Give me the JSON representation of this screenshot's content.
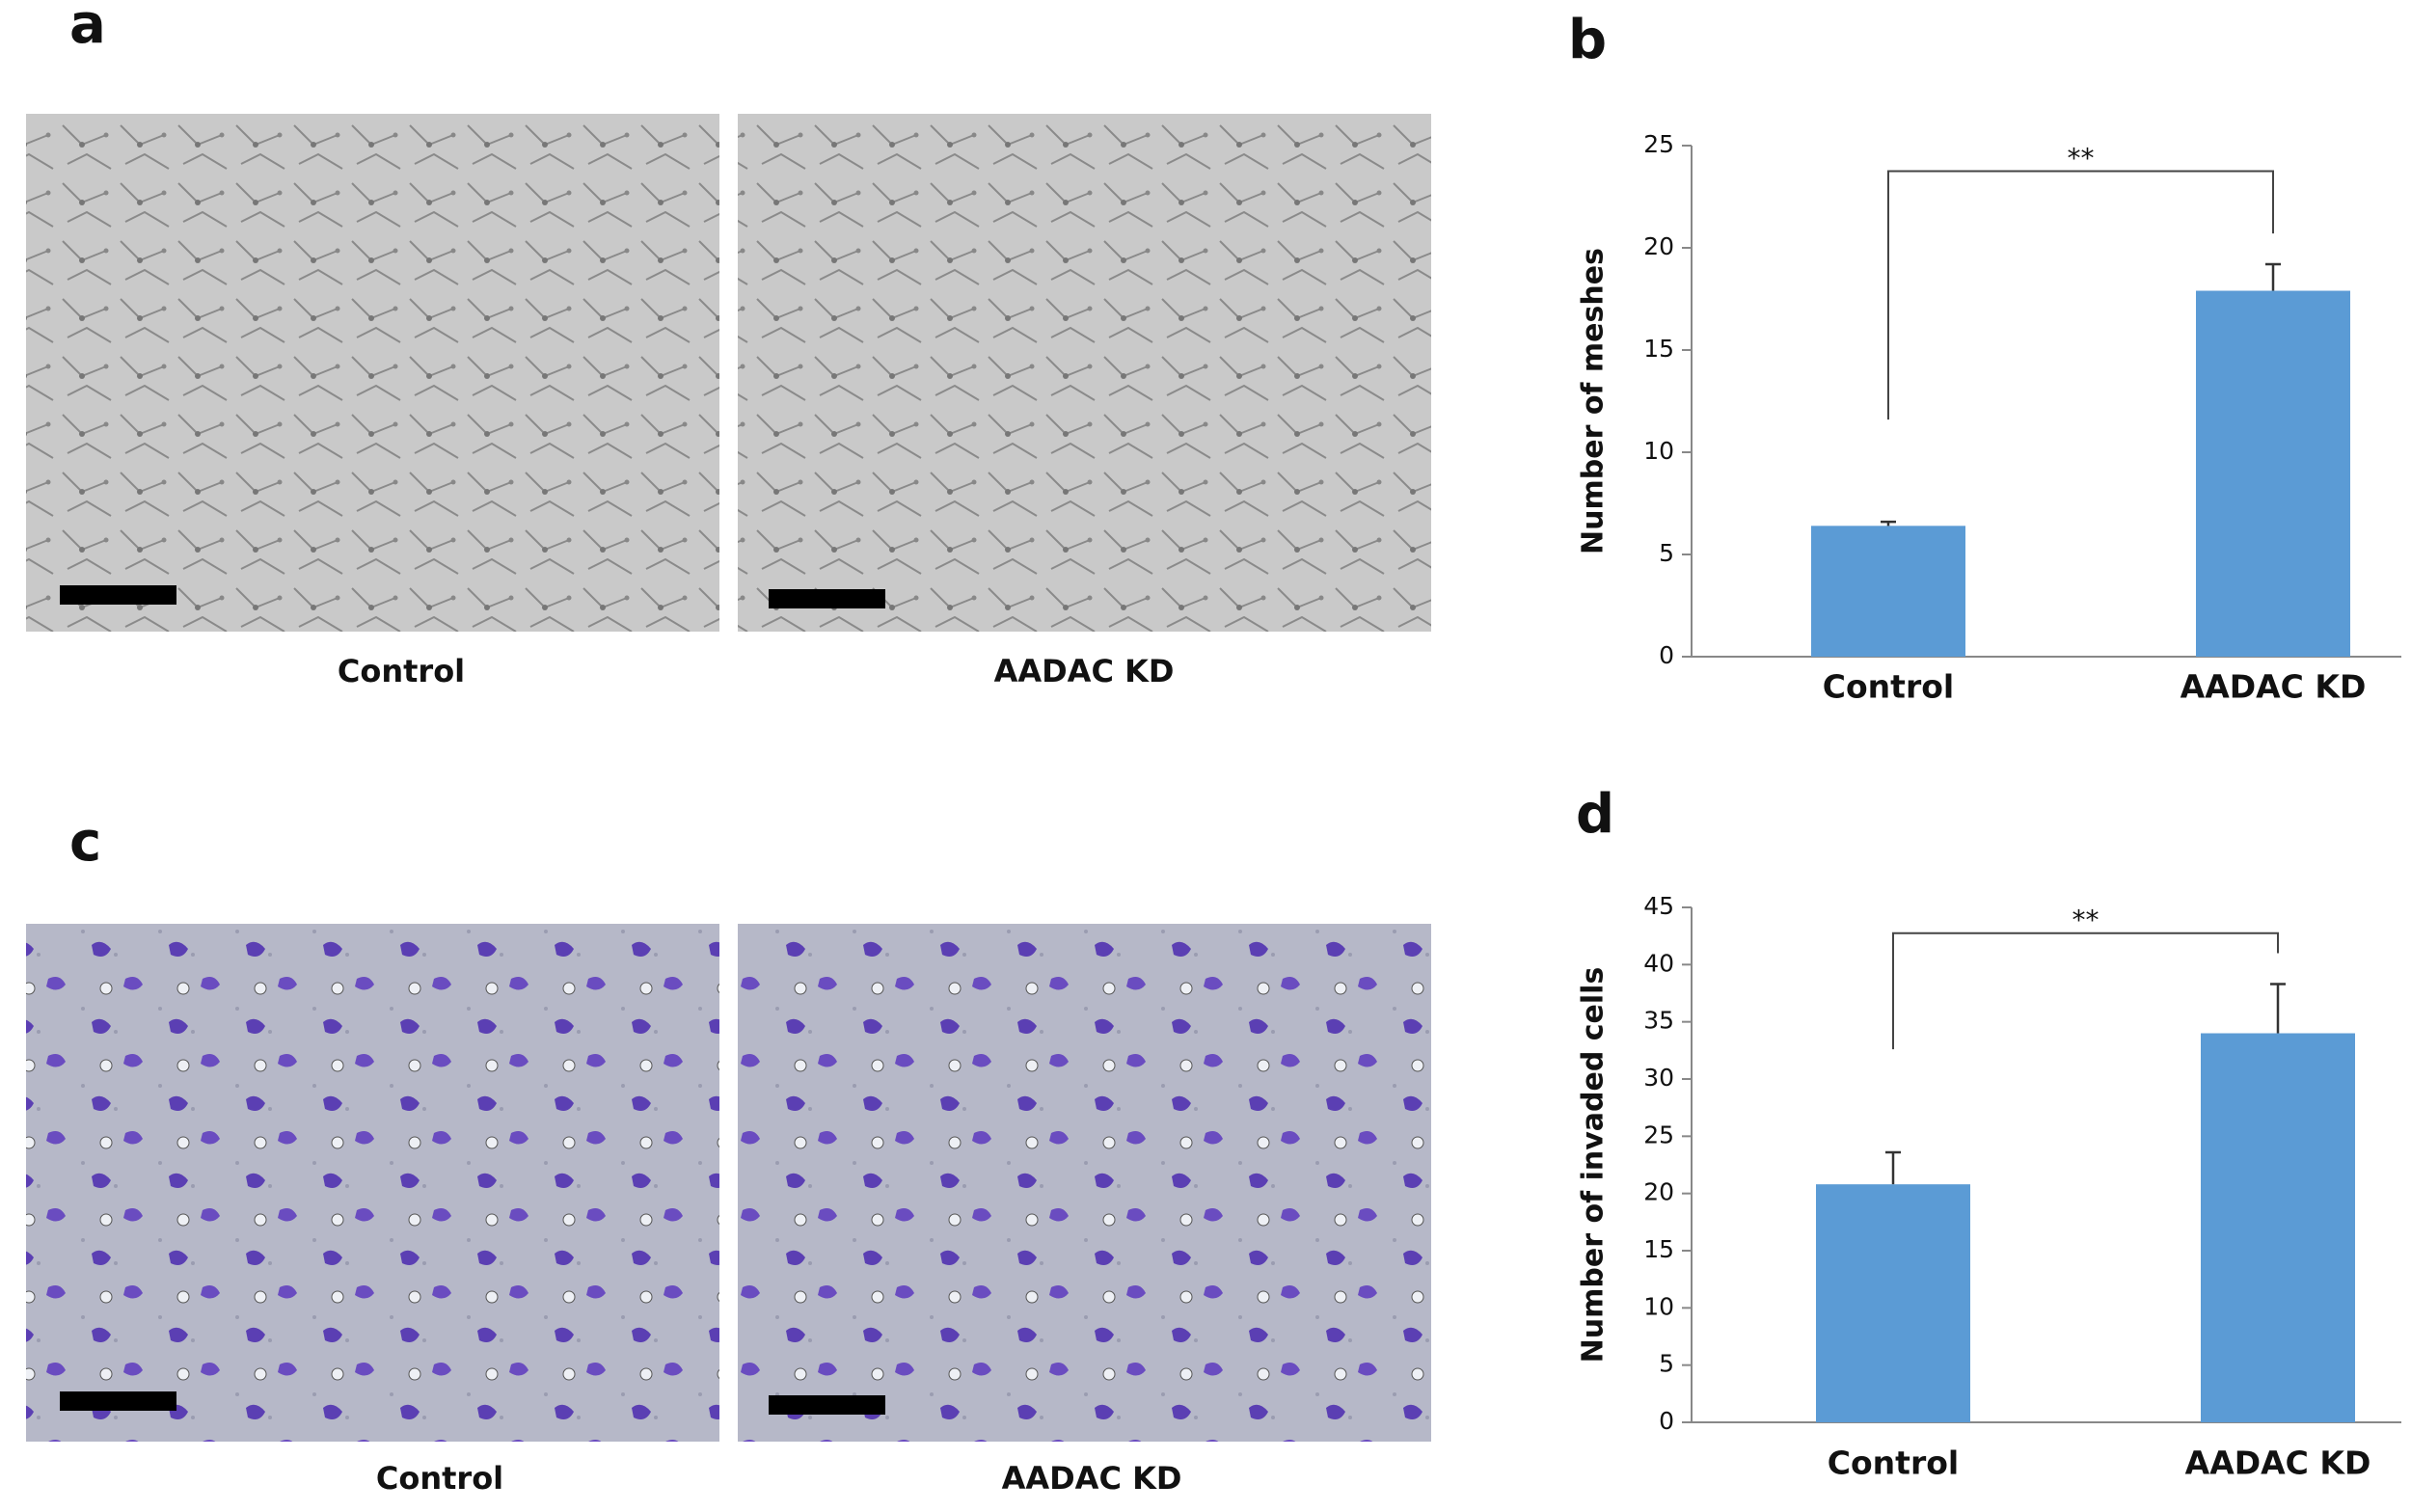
{
  "panels": [
    {
      "label": "a",
      "captions": [
        "Control",
        "AADAC  KD"
      ]
    },
    {
      "label": "b"
    },
    {
      "label": "c",
      "captions": [
        "Control",
        "AADAC  KD"
      ]
    },
    {
      "label": "d"
    }
  ],
  "chart_data": [
    {
      "type": "bar",
      "ylabel": "Number  of  meshes",
      "categories": [
        "Control",
        "AADAC  KD"
      ],
      "values": [
        6.4,
        17.9
      ],
      "errors": [
        0.2,
        1.3
      ],
      "color": "#5b9bd5",
      "ylim": [
        0,
        25
      ],
      "yticks": [
        0,
        5,
        10,
        15,
        20,
        25
      ],
      "annotation": "**"
    },
    {
      "type": "bar",
      "ylabel": "Number  of  invaded cells",
      "categories": [
        "Control",
        "AADAC  KD"
      ],
      "values": [
        20.8,
        34
      ],
      "errors": [
        2.8,
        4.3
      ],
      "color": "#5b9bd5",
      "ylim": [
        0,
        45
      ],
      "yticks": [
        0,
        5,
        10,
        15,
        20,
        25,
        30,
        35,
        40,
        45
      ],
      "annotation": "**"
    }
  ]
}
